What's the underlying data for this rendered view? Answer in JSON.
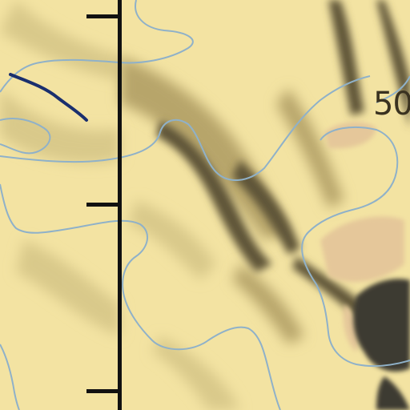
{
  "map": {
    "type": "topographic-relief",
    "colors": {
      "land": "#f3e3a2",
      "ridge_shade_light": "#d9c98a",
      "ridge_shade": "#b7a56a",
      "ridge_shade_dark": "#5e5437",
      "rock": "#3e3a30",
      "peak_patch": "#e5c79a",
      "contour": "#8fb1c9",
      "trail": "#1a2f6e",
      "ruler": "#111111"
    },
    "elevation_label": "50",
    "icons": [
      "ruler-scale",
      "trail-line"
    ]
  }
}
